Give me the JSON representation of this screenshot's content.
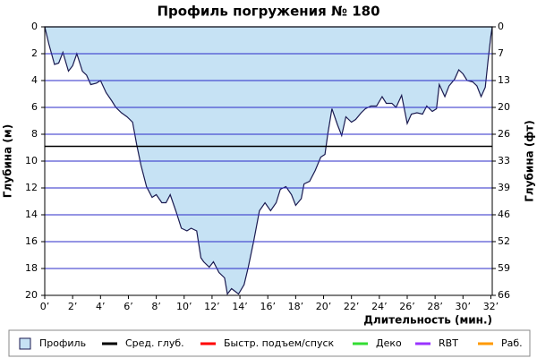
{
  "chart_data": {
    "type": "area",
    "title": "Профиль погружения № 180",
    "x_label": "Длительность (мин.)",
    "y_label": "Глубина (м)",
    "y2_label": "Глубина (фт)",
    "xlim": [
      0,
      32.1
    ],
    "ylim": [
      0,
      20
    ],
    "y2lim": [
      0,
      65.62
    ],
    "inverted_y": true,
    "grid": true,
    "xticks": [
      {
        "value": 0,
        "label": "0’"
      },
      {
        "value": 2,
        "label": "2’"
      },
      {
        "value": 4,
        "label": "4’"
      },
      {
        "value": 6,
        "label": "6’"
      },
      {
        "value": 8,
        "label": "8’"
      },
      {
        "value": 10,
        "label": "10’"
      },
      {
        "value": 12,
        "label": "12’"
      },
      {
        "value": 14,
        "label": "14’"
      },
      {
        "value": 16,
        "label": "16’"
      },
      {
        "value": 18,
        "label": "18’"
      },
      {
        "value": 20,
        "label": "20’"
      },
      {
        "value": 22,
        "label": "22’"
      },
      {
        "value": 24,
        "label": "24’"
      },
      {
        "value": 26,
        "label": "26’"
      },
      {
        "value": 28,
        "label": "28’"
      },
      {
        "value": 30,
        "label": "30’"
      },
      {
        "value": 32,
        "label": "32’"
      }
    ],
    "yticks": [
      0,
      2,
      4,
      6,
      8,
      10,
      12,
      14,
      16,
      18,
      20
    ],
    "y2ticks": [
      0,
      {
        "value": 6.56,
        "label": "7"
      },
      {
        "value": 13.12,
        "label": "13"
      },
      {
        "value": 19.69,
        "label": "20"
      },
      {
        "value": 26.25,
        "label": "26"
      },
      {
        "value": 32.81,
        "label": "33"
      },
      {
        "value": 39.37,
        "label": "39"
      },
      {
        "value": 45.93,
        "label": "46"
      },
      {
        "value": 52.49,
        "label": "52"
      },
      {
        "value": 59.06,
        "label": "59"
      },
      {
        "value": 65.62,
        "label": "66"
      }
    ],
    "series": [
      {
        "name": "Профиль",
        "color": "#c6e2f4",
        "line_color": "#1a1a50",
        "x": [
          0,
          0.3,
          0.7,
          1.0,
          1.3,
          1.7,
          2.0,
          2.3,
          2.7,
          3.0,
          3.3,
          3.7,
          4.0,
          4.4,
          4.8,
          5.1,
          5.5,
          5.9,
          6.3,
          6.6,
          6.9,
          7.3,
          7.7,
          8.0,
          8.4,
          8.7,
          9.0,
          9.4,
          9.8,
          10.2,
          10.5,
          10.9,
          11.2,
          11.4,
          11.8,
          12.1,
          12.5,
          12.9,
          13.1,
          13.4,
          13.9,
          14.3,
          14.6,
          15.0,
          15.4,
          15.8,
          16.2,
          16.6,
          16.9,
          17.3,
          17.7,
          18.0,
          18.4,
          18.6,
          19.0,
          19.4,
          19.8,
          20.1,
          20.3,
          20.6,
          21.0,
          21.3,
          21.6,
          22.0,
          22.3,
          22.7,
          23.0,
          23.4,
          23.8,
          24.2,
          24.5,
          24.9,
          25.2,
          25.6,
          26.0,
          26.3,
          26.7,
          27.1,
          27.4,
          27.8,
          28.1,
          28.3,
          28.7,
          29.0,
          29.4,
          29.7,
          30.0,
          30.3,
          30.7,
          31.0,
          31.3,
          31.6,
          31.8,
          32.0,
          32.1
        ],
        "values": [
          0,
          1.3,
          2.8,
          2.7,
          1.9,
          3.3,
          2.9,
          2.0,
          3.3,
          3.6,
          4.3,
          4.2,
          4.0,
          4.9,
          5.5,
          6.0,
          6.4,
          6.7,
          7.1,
          8.8,
          10.3,
          11.9,
          12.7,
          12.5,
          13.1,
          13.1,
          12.5,
          13.7,
          15.0,
          15.2,
          15.0,
          15.2,
          17.2,
          17.5,
          17.9,
          17.5,
          18.3,
          18.7,
          19.9,
          19.5,
          19.9,
          19.2,
          17.9,
          15.9,
          13.7,
          13.1,
          13.7,
          13.1,
          12.1,
          11.9,
          12.5,
          13.3,
          12.8,
          11.7,
          11.5,
          10.7,
          9.7,
          9.5,
          8.0,
          6.1,
          7.3,
          8.1,
          6.7,
          7.1,
          6.9,
          6.4,
          6.1,
          5.9,
          5.9,
          5.2,
          5.7,
          5.7,
          6.0,
          5.1,
          7.2,
          6.5,
          6.4,
          6.5,
          5.9,
          6.3,
          6.1,
          4.3,
          5.2,
          4.4,
          3.9,
          3.2,
          3.5,
          4.0,
          4.1,
          4.4,
          5.2,
          4.5,
          2.5,
          0.7,
          0
        ]
      },
      {
        "name": "Сред. глуб.",
        "color": "#000000",
        "value": 8.9
      },
      {
        "name": "Быстр. подъем/спуск",
        "color": "#ff0000"
      },
      {
        "name": "Деко",
        "color": "#33dd33"
      },
      {
        "name": "RBT",
        "color": "#9933ff"
      },
      {
        "name": "Раб.",
        "color": "#ff9900"
      }
    ]
  }
}
